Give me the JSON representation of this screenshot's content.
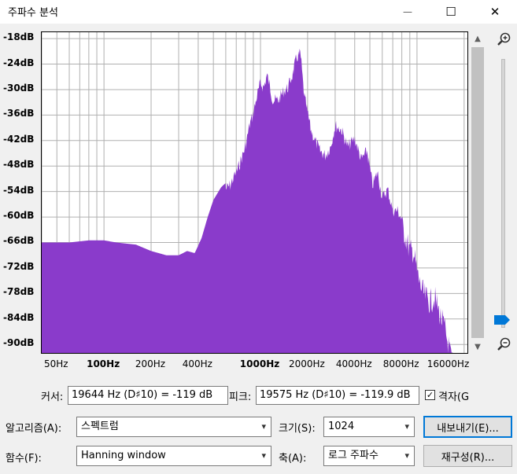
{
  "window": {
    "title": "주파수 분석",
    "minimize_glyph": "—",
    "maximize_glyph": "☐",
    "close_glyph": "✕"
  },
  "chart_data": {
    "type": "area",
    "color": "#8a3bcb",
    "x_scale": "log",
    "xlim": [
      40,
      21000
    ],
    "ylim": [
      -92,
      -16.5
    ],
    "grid": true,
    "y_ticks": [
      "-18dB",
      "-24dB",
      "-30dB",
      "-36dB",
      "-42dB",
      "-48dB",
      "-54dB",
      "-60dB",
      "-66dB",
      "-72dB",
      "-78dB",
      "-84dB",
      "-90dB"
    ],
    "x_ticks": [
      {
        "label": "50Hz",
        "hz": 50,
        "bold": false
      },
      {
        "label": "100Hz",
        "hz": 100,
        "bold": true
      },
      {
        "label": "200Hz",
        "hz": 200,
        "bold": false
      },
      {
        "label": "400Hz",
        "hz": 400,
        "bold": false
      },
      {
        "label": "1000Hz",
        "hz": 1000,
        "bold": true
      },
      {
        "label": "2000Hz",
        "hz": 2000,
        "bold": false
      },
      {
        "label": "4000Hz",
        "hz": 4000,
        "bold": false
      },
      {
        "label": "8000Hz",
        "hz": 8000,
        "bold": false
      },
      {
        "label": "16000Hz",
        "hz": 16000,
        "bold": false
      }
    ],
    "x": [
      40,
      60,
      80,
      100,
      120,
      160,
      200,
      250,
      300,
      340,
      380,
      420,
      460,
      500,
      560,
      640,
      720,
      800,
      850,
      900,
      950,
      1000,
      1050,
      1100,
      1150,
      1200,
      1300,
      1400,
      1500,
      1600,
      1700,
      1800,
      1900,
      2000,
      2100,
      2200,
      2400,
      2600,
      2800,
      3000,
      3300,
      3600,
      4000,
      4400,
      4800,
      5200,
      5600,
      6000,
      6500,
      7000,
      7500,
      8000,
      8500,
      9000,
      9500,
      10000,
      10500,
      11000,
      12000,
      13000,
      14000,
      15000,
      16000,
      17000
    ],
    "y": [
      -66,
      -66,
      -65.5,
      -65.5,
      -66,
      -66.5,
      -68,
      -69,
      -69,
      -68,
      -68.5,
      -65,
      -60,
      -56,
      -53,
      -51,
      -47,
      -42,
      -37,
      -34,
      -30,
      -27,
      -28,
      -25,
      -28,
      -31,
      -31,
      -29,
      -28,
      -25,
      -21,
      -20,
      -30,
      -34,
      -38,
      -40,
      -43,
      -44,
      -42,
      -37,
      -38,
      -42,
      -40,
      -45,
      -43,
      -51,
      -48,
      -54,
      -52,
      -57,
      -57,
      -59,
      -62,
      -65,
      -65,
      -70,
      -73,
      -75,
      -77,
      -76,
      -80,
      -83,
      -88,
      -92
    ]
  },
  "cursor": {
    "label": "커서:",
    "value": "19644 Hz (D♯10) = -119 dB"
  },
  "peak": {
    "label": "피크:",
    "value": "19575 Hz (D♯10) = -119.9 dB"
  },
  "grid_checkbox": {
    "label": "격자(G)",
    "checked": true,
    "check_glyph": "✓"
  },
  "algorithm": {
    "label": "알고리즘(A):",
    "value": "스펙트럼"
  },
  "size": {
    "label": "크기(S):",
    "value": "1024"
  },
  "function": {
    "label": "함수(F):",
    "value": "Hanning window"
  },
  "axis": {
    "label": "축(A):",
    "value": "로그 주파수"
  },
  "buttons": {
    "export": "내보내기(E)...",
    "replot": "재구성(R)..."
  },
  "icons": {
    "zoom_in": "zoom-in-icon",
    "zoom_out": "zoom-out-icon",
    "chevron_down": "▾",
    "scroll_up": "▲",
    "scroll_down": "▼"
  }
}
